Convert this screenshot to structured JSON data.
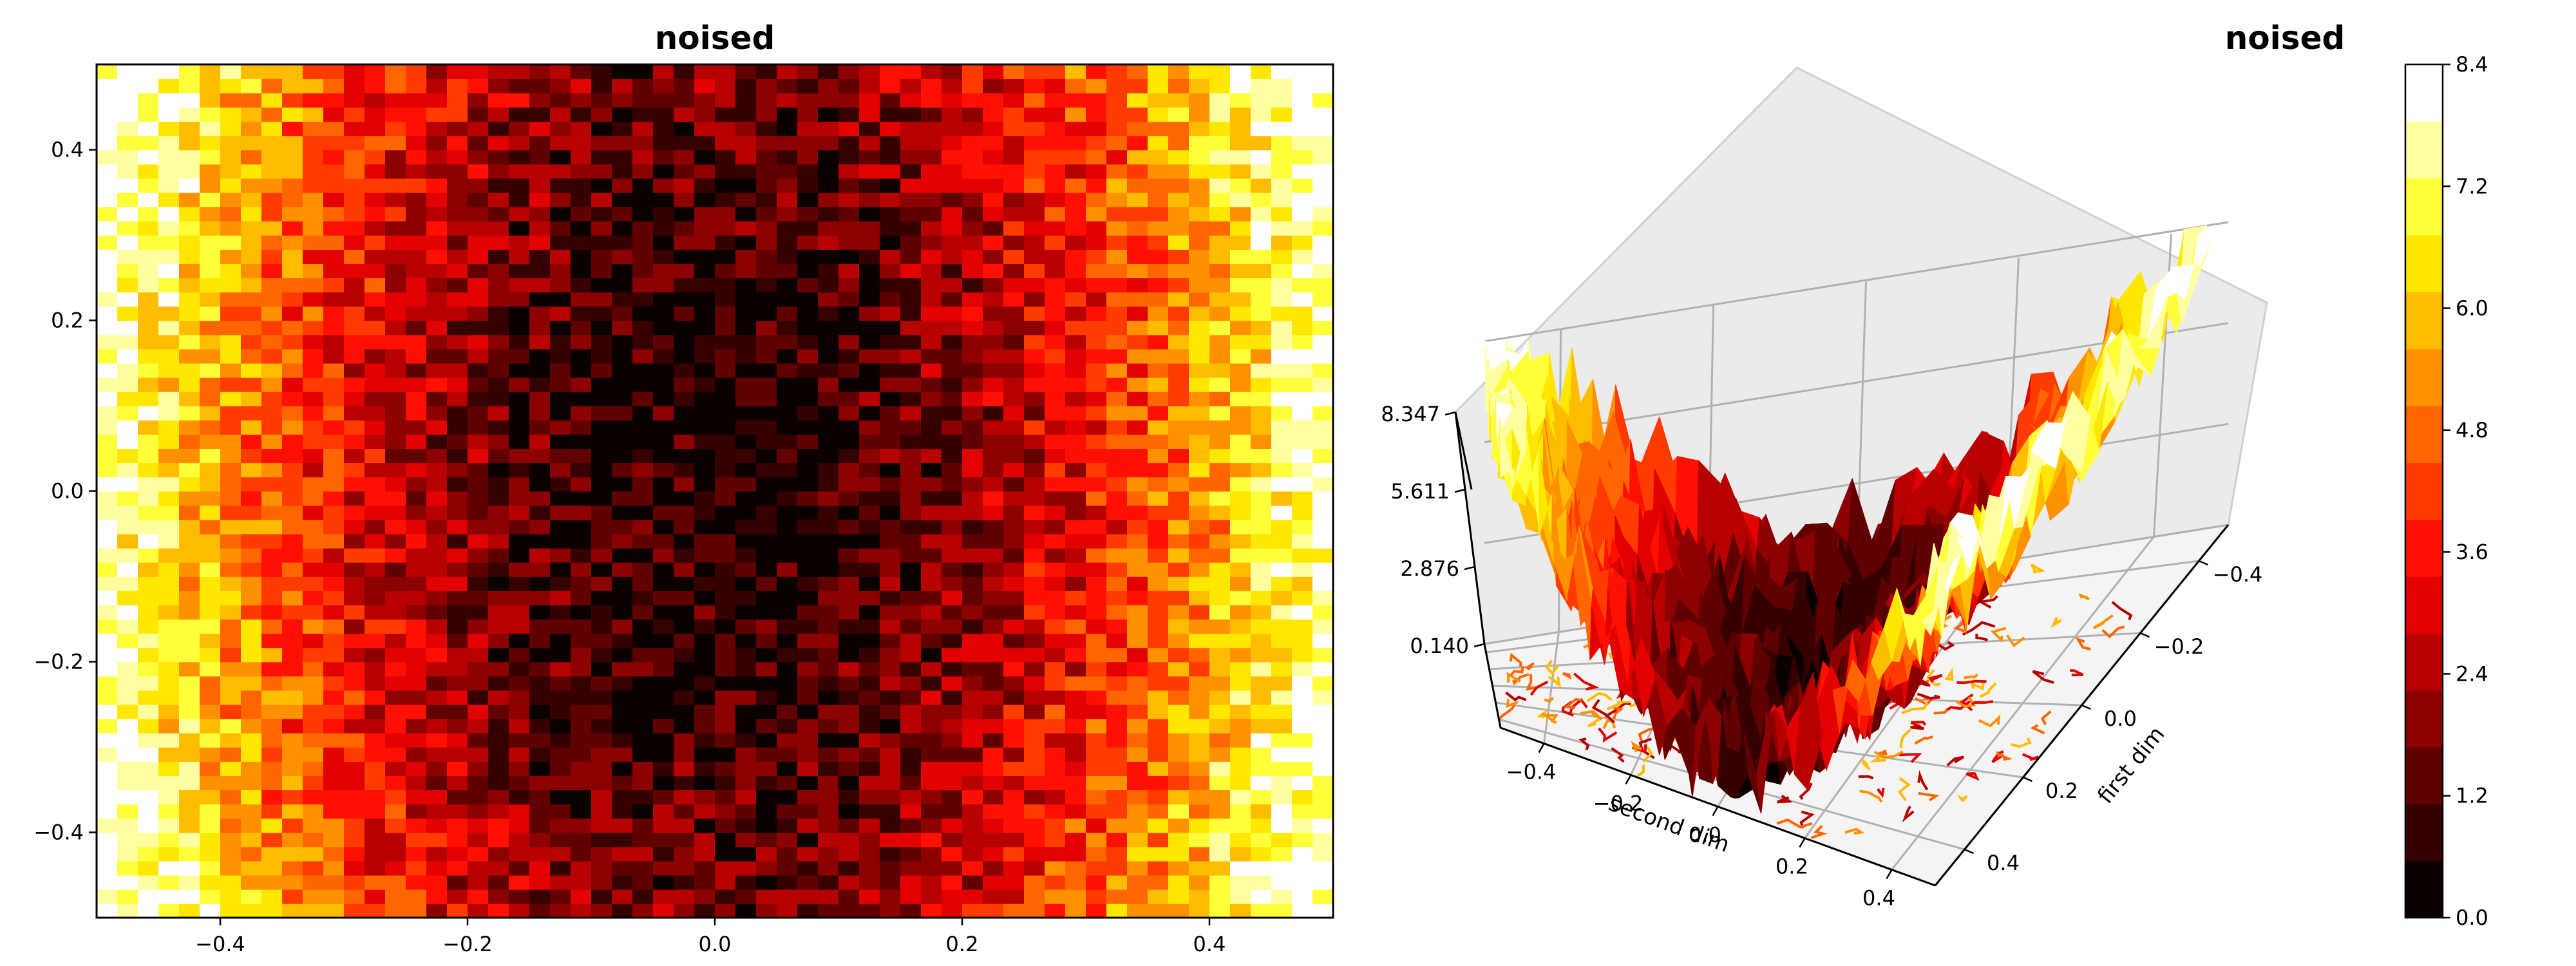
{
  "chart_data": [
    {
      "type": "heatmap",
      "subtype": "filled-contour",
      "title": "noised",
      "xlabel": "",
      "ylabel": "",
      "xlim": [
        -0.5,
        0.5
      ],
      "ylim": [
        -0.5,
        0.5
      ],
      "xticks": [
        -0.4,
        -0.2,
        0.0,
        0.2,
        0.4
      ],
      "yticks": [
        -0.4,
        -0.2,
        0.0,
        0.2,
        0.4
      ],
      "xtick_labels": [
        "−0.4",
        "−0.2",
        "0.0",
        "0.2",
        "0.4"
      ],
      "ytick_labels": [
        "−0.4",
        "−0.2",
        "0.0",
        "0.2",
        "0.4"
      ],
      "colormap": "hot",
      "grid": false,
      "description_of_field": "low values (dark red/black) along the central vertical band x≈-0.25..0.25 with minimum near x≈0, y≈0; high values (yellow/white) near the left and right edges; strong pixel noise",
      "z_min_approx": 0.14,
      "z_max_approx": 8.347
    },
    {
      "type": "surface3d",
      "title": "noised",
      "xlabel": "second dim",
      "ylabel": "first dim",
      "xlim": [
        -0.5,
        0.5
      ],
      "ylim": [
        -0.5,
        0.5
      ],
      "zlim": [
        0.14,
        8.347
      ],
      "xticks": [
        -0.4,
        -0.2,
        0.0,
        0.2,
        0.4
      ],
      "yticks": [
        -0.4,
        -0.2,
        0.0,
        0.2,
        0.4
      ],
      "zticks": [
        0.14,
        2.876,
        5.611,
        8.347
      ],
      "xtick_labels": [
        "−0.4",
        "−0.2",
        "0.0",
        "0.2",
        "0.4"
      ],
      "ytick_labels": [
        "−0.4",
        "−0.2",
        "0.0",
        "0.2",
        "0.4"
      ],
      "ztick_labels": [
        "0.140",
        "2.876",
        "5.611",
        "8.347"
      ],
      "colormap": "hot",
      "grid": true,
      "has_floor_contours": true
    }
  ],
  "colorbar": {
    "min": 0.0,
    "max": 8.4,
    "levels": [
      0.0,
      0.6,
      1.2,
      1.8,
      2.4,
      3.0,
      3.6,
      4.2,
      4.8,
      5.4,
      6.0,
      6.6,
      7.2,
      7.8,
      8.4
    ],
    "tick_values": [
      0.0,
      1.2,
      2.4,
      3.6,
      4.8,
      6.0,
      7.2,
      8.4
    ],
    "tick_labels": [
      "0.0",
      "1.2",
      "2.4",
      "3.6",
      "4.8",
      "6.0",
      "7.2",
      "8.4"
    ],
    "colors": [
      "#0b0000",
      "#360000",
      "#610000",
      "#8c0000",
      "#b70000",
      "#e20000",
      "#ff1000",
      "#ff3b00",
      "#ff6600",
      "#ff9100",
      "#ffbc00",
      "#ffe700",
      "#ffff3a",
      "#ffff9f",
      "#ffffff"
    ]
  }
}
